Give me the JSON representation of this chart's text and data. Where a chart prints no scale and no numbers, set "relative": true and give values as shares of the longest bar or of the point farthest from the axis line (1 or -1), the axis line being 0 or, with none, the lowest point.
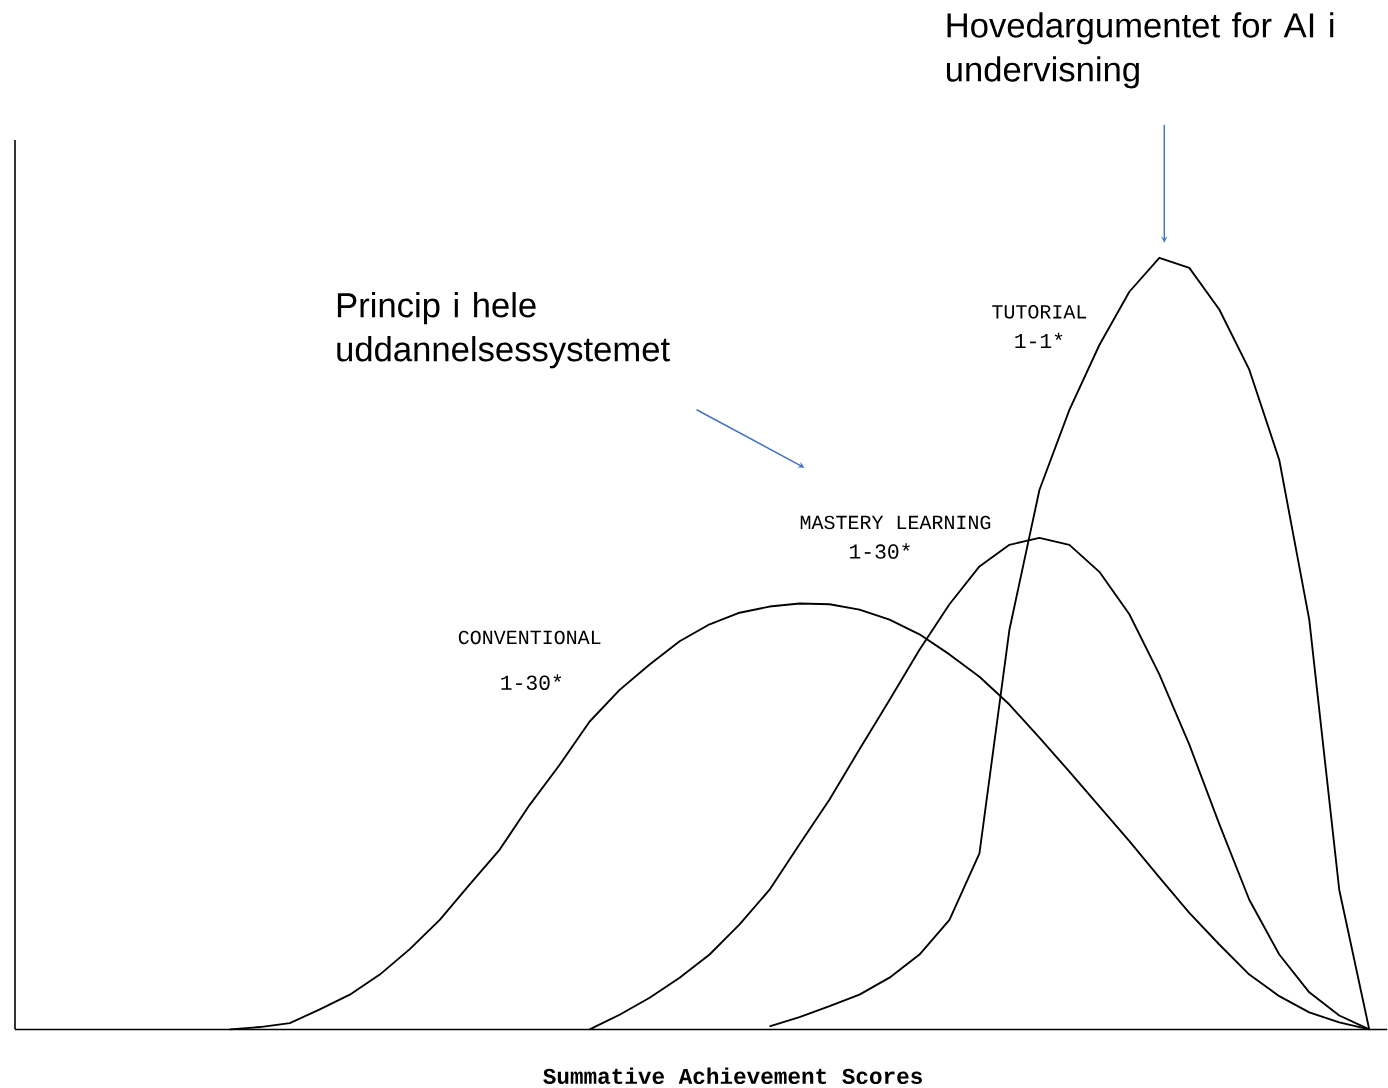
{
  "chart_data": {
    "type": "line",
    "relative": true,
    "xlabel": "Summative Achievement Scores",
    "categories": [
      null,
      null,
      null,
      null,
      null,
      null,
      null,
      null,
      null,
      null,
      null,
      null,
      null,
      null,
      null,
      null,
      null,
      null,
      null,
      null,
      null,
      null,
      null,
      null,
      null,
      null,
      null,
      null,
      null,
      null,
      null,
      null,
      null,
      null,
      null,
      null,
      null,
      null,
      null
    ],
    "series": [
      {
        "name": "CONVENTIONAL",
        "color": "#000000",
        "values": [
          0,
          0.003,
          0.008,
          0.026,
          0.045,
          0.071,
          0.104,
          0.142,
          0.188,
          0.233,
          0.291,
          0.343,
          0.399,
          0.44,
          0.473,
          0.503,
          0.525,
          0.54,
          0.548,
          0.552,
          0.551,
          0.544,
          0.531,
          0.512,
          0.486,
          0.457,
          0.421,
          0.378,
          0.334,
          0.289,
          0.244,
          0.197,
          0.151,
          0.11,
          0.071,
          0.043,
          0.022,
          0.009,
          0
        ]
      },
      {
        "name": "MASTERY LEARNING",
        "color": "#000000",
        "values": [
          null,
          null,
          null,
          null,
          null,
          null,
          null,
          null,
          null,
          null,
          null,
          null,
          0,
          0.019,
          0.041,
          0.067,
          0.097,
          0.136,
          0.181,
          0.24,
          0.298,
          0.363,
          0.427,
          0.492,
          0.551,
          0.6,
          0.628,
          0.637,
          0.628,
          0.593,
          0.538,
          0.46,
          0.369,
          0.266,
          0.168,
          0.097,
          0.048,
          0.018,
          0
        ]
      },
      {
        "name": "TUTORIAL",
        "color": "#000000",
        "values": [
          null,
          null,
          null,
          null,
          null,
          null,
          null,
          null,
          null,
          null,
          null,
          null,
          null,
          null,
          null,
          null,
          null,
          null,
          0.004,
          0.016,
          0.03,
          0.045,
          0.067,
          0.097,
          0.142,
          0.228,
          0.518,
          0.699,
          0.803,
          0.887,
          0.956,
          1,
          0.987,
          0.933,
          0.855,
          0.738,
          0.531,
          0.181,
          0
        ]
      }
    ],
    "annotations": [
      "Hovedargumentet for AI i undervisning",
      "Princip i hele uddannelsessystemet",
      "1-30*",
      "1-30*",
      "1-1*"
    ]
  }
}
